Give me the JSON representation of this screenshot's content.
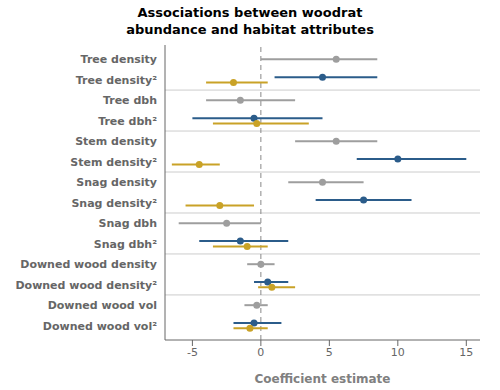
{
  "chart_data": {
    "type": "forest",
    "title": "Associations between woodrat\nabundance and habitat attributes",
    "xlabel": "Coefficient estimate",
    "categories": [
      "Tree density",
      "Tree density²",
      "Tree dbh",
      "Tree dbh²",
      "Stem density",
      "Stem density²",
      "Snag density",
      "Snag density²",
      "Snag dbh",
      "Snag dbh²",
      "Downed wood density",
      "Downed wood density²",
      "Downed wood vol",
      "Downed wood vol²"
    ],
    "series": [
      {
        "color": "#9E9E9E",
        "values": [
          5.5,
          null,
          -1.5,
          null,
          5.5,
          null,
          4.5,
          null,
          -2.5,
          null,
          0.0,
          null,
          -0.3,
          null
        ],
        "lo": [
          0.0,
          null,
          -4.0,
          null,
          2.5,
          null,
          2.0,
          null,
          -6.0,
          null,
          -1.0,
          null,
          -1.2,
          null
        ],
        "hi": [
          8.5,
          null,
          2.5,
          null,
          8.5,
          null,
          7.5,
          null,
          0.0,
          null,
          1.0,
          null,
          0.5,
          null
        ]
      },
      {
        "color": "#2B5C8A",
        "values": [
          null,
          4.5,
          null,
          -0.5,
          null,
          10.0,
          null,
          7.5,
          null,
          -1.5,
          null,
          0.5,
          null,
          -0.5
        ],
        "lo": [
          null,
          1.0,
          null,
          -5.0,
          null,
          7.0,
          null,
          4.0,
          null,
          -4.5,
          null,
          -0.5,
          null,
          -2.0
        ],
        "hi": [
          null,
          8.5,
          null,
          4.5,
          null,
          15.0,
          null,
          11.0,
          null,
          2.0,
          null,
          2.0,
          null,
          1.5
        ]
      },
      {
        "color": "#C9A227",
        "values": [
          null,
          -2.0,
          null,
          -0.3,
          null,
          -4.5,
          null,
          -3.0,
          null,
          -1.0,
          null,
          0.8,
          null,
          -0.8
        ],
        "lo": [
          null,
          -4.0,
          null,
          -3.5,
          null,
          -6.5,
          null,
          -5.5,
          null,
          -3.5,
          null,
          -0.2,
          null,
          -2.0
        ],
        "hi": [
          null,
          0.5,
          null,
          3.5,
          null,
          -3.0,
          null,
          -0.5,
          null,
          0.5,
          null,
          2.5,
          null,
          0.5
        ]
      }
    ],
    "xlim": [
      -7,
      16
    ],
    "xticks": [
      -5,
      0,
      5,
      10,
      15
    ],
    "dashed_x": 0
  }
}
